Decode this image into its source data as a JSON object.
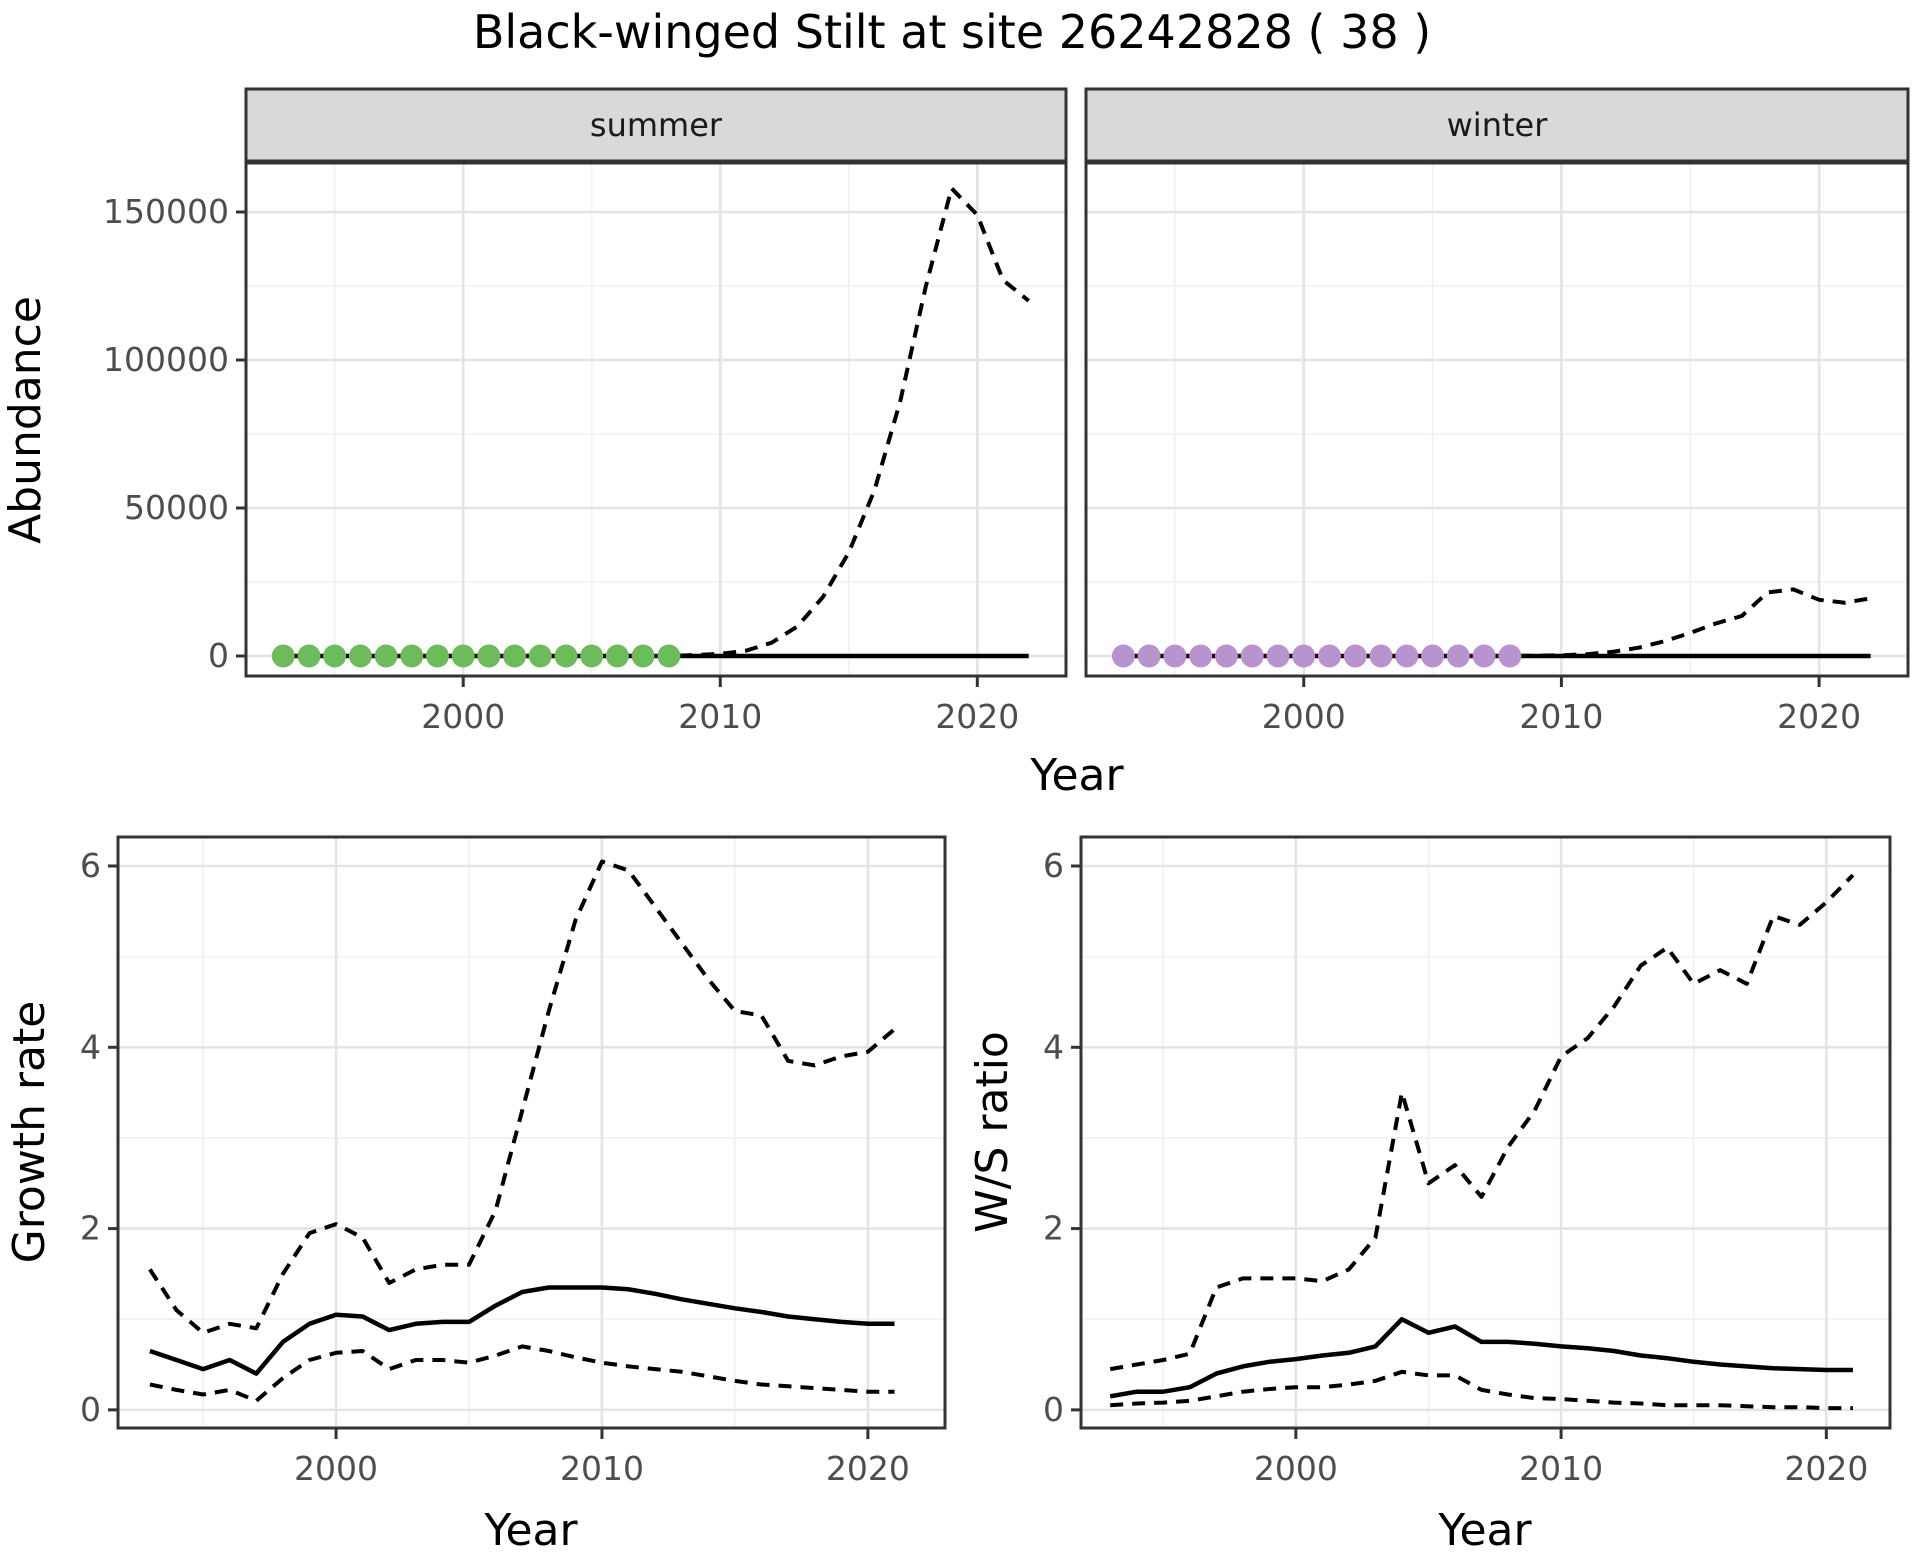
{
  "title": "Black-winged Stilt at site 26242828 ( 38 )",
  "colors": {
    "background": "#ffffff",
    "summer_points": "#6cbc5c",
    "winter_points": "#b993cd",
    "line": "#000000",
    "grid_major": "#e4e4e4",
    "grid_minor": "#f1f1f1",
    "strip_fill": "#d9d9d9",
    "panel_border": "#333333",
    "tick_mark": "#333333",
    "tick_label": "#4d4d4d"
  },
  "chart_data": [
    {
      "id": "abundance",
      "type": "line",
      "xlabel": "Year",
      "ylabel": "Abundance",
      "xlim": [
        1991.55,
        2023.45
      ],
      "ylim": [
        -6760,
        166560
      ],
      "xticks": [
        2000,
        2010,
        2020
      ],
      "xticks_minor": [
        1995,
        2005,
        2015
      ],
      "yticks": [
        0,
        50000,
        100000,
        150000
      ],
      "yticks_minor": [
        25000,
        75000,
        125000
      ],
      "grid": "on",
      "legend": "none",
      "x": [
        1993,
        1994,
        1995,
        1996,
        1997,
        1998,
        1999,
        2000,
        2001,
        2002,
        2003,
        2004,
        2005,
        2006,
        2007,
        2008,
        2009,
        2010,
        2011,
        2012,
        2013,
        2014,
        2015,
        2016,
        2017,
        2018,
        2019,
        2020,
        2021,
        2022
      ],
      "facets": [
        {
          "label": "summer",
          "point_color": "#6cbc5c",
          "dot_years": [
            1993,
            1994,
            1995,
            1996,
            1997,
            1998,
            1999,
            2000,
            2001,
            2002,
            2003,
            2004,
            2005,
            2006,
            2007,
            2008
          ],
          "dot_value": 0,
          "series": [
            {
              "name": "median",
              "style": "solid",
              "values": [
                0,
                0,
                0,
                0,
                0,
                0,
                0,
                0,
                0,
                0,
                0,
                0,
                0,
                0,
                0,
                0,
                0,
                0,
                0,
                0,
                0,
                0,
                0,
                0,
                0,
                0,
                0,
                0,
                0,
                0
              ]
            },
            {
              "name": "upper_ci",
              "style": "dashed",
              "values": [
                0,
                0,
                0,
                0,
                0,
                0,
                0,
                0,
                0,
                0,
                0,
                0,
                0,
                0,
                0,
                0,
                300,
                700,
                1800,
                4500,
                10000,
                20000,
                35000,
                56000,
                86000,
                125000,
                158000,
                149000,
                127000,
                120000
              ]
            },
            {
              "name": "lower_ci",
              "style": "dashed",
              "values": [
                0,
                0,
                0,
                0,
                0,
                0,
                0,
                0,
                0,
                0,
                0,
                0,
                0,
                0,
                0,
                0,
                0,
                0,
                0,
                0,
                0,
                0,
                0,
                0,
                0,
                0,
                0,
                0,
                0,
                0
              ]
            }
          ]
        },
        {
          "label": "winter",
          "point_color": "#b993cd",
          "dot_years": [
            1993,
            1994,
            1995,
            1996,
            1997,
            1998,
            1999,
            2000,
            2001,
            2002,
            2003,
            2004,
            2005,
            2006,
            2007,
            2008
          ],
          "dot_value": 0,
          "series": [
            {
              "name": "median",
              "style": "solid",
              "values": [
                0,
                0,
                0,
                0,
                0,
                0,
                0,
                0,
                0,
                0,
                0,
                0,
                0,
                0,
                0,
                0,
                0,
                0,
                0,
                0,
                0,
                0,
                0,
                0,
                0,
                0,
                0,
                0,
                0,
                0
              ]
            },
            {
              "name": "upper_ci",
              "style": "dashed",
              "values": [
                0,
                0,
                0,
                0,
                0,
                0,
                0,
                0,
                0,
                0,
                0,
                0,
                0,
                0,
                0,
                0,
                100,
                250,
                600,
                1400,
                2800,
                5000,
                7800,
                11000,
                13500,
                21500,
                22500,
                19000,
                18000,
                19500
              ]
            },
            {
              "name": "lower_ci",
              "style": "dashed",
              "values": [
                0,
                0,
                0,
                0,
                0,
                0,
                0,
                0,
                0,
                0,
                0,
                0,
                0,
                0,
                0,
                0,
                0,
                0,
                0,
                0,
                0,
                0,
                0,
                0,
                0,
                0,
                0,
                0,
                0,
                0
              ]
            }
          ]
        }
      ]
    },
    {
      "id": "growth_rate",
      "type": "line",
      "xlabel": "Year",
      "ylabel": "Growth rate",
      "xlim": [
        1991.8,
        2022.9
      ],
      "ylim": [
        -0.2,
        6.32
      ],
      "xticks": [
        2000,
        2010,
        2020
      ],
      "xticks_minor": [
        1995,
        2005,
        2015
      ],
      "yticks": [
        0,
        2,
        4,
        6
      ],
      "yticks_minor": [
        1,
        3,
        5
      ],
      "grid": "on",
      "legend": "none",
      "x": [
        1993,
        1994,
        1995,
        1996,
        1997,
        1998,
        1999,
        2000,
        2001,
        2002,
        2003,
        2004,
        2005,
        2006,
        2007,
        2008,
        2009,
        2010,
        2011,
        2012,
        2013,
        2014,
        2015,
        2016,
        2017,
        2018,
        2019,
        2020,
        2021
      ],
      "series": [
        {
          "name": "median",
          "style": "solid",
          "values": [
            0.65,
            0.55,
            0.45,
            0.55,
            0.4,
            0.75,
            0.95,
            1.05,
            1.03,
            0.88,
            0.95,
            0.97,
            0.97,
            1.15,
            1.3,
            1.35,
            1.35,
            1.35,
            1.33,
            1.28,
            1.22,
            1.17,
            1.12,
            1.08,
            1.03,
            1.0,
            0.97,
            0.95,
            0.95
          ]
        },
        {
          "name": "upper_ci",
          "style": "dashed",
          "values": [
            1.55,
            1.1,
            0.85,
            0.95,
            0.9,
            1.5,
            1.95,
            2.05,
            1.9,
            1.4,
            1.55,
            1.6,
            1.6,
            2.2,
            3.3,
            4.4,
            5.4,
            6.05,
            5.95,
            5.55,
            5.15,
            4.75,
            4.4,
            4.35,
            3.85,
            3.8,
            3.9,
            3.95,
            4.2
          ]
        },
        {
          "name": "lower_ci",
          "style": "dashed",
          "values": [
            0.28,
            0.22,
            0.17,
            0.22,
            0.1,
            0.35,
            0.55,
            0.63,
            0.65,
            0.45,
            0.55,
            0.55,
            0.52,
            0.6,
            0.7,
            0.65,
            0.58,
            0.52,
            0.48,
            0.45,
            0.42,
            0.37,
            0.32,
            0.28,
            0.26,
            0.24,
            0.22,
            0.2,
            0.2
          ]
        }
      ]
    },
    {
      "id": "ws_ratio",
      "type": "line",
      "xlabel": "Year",
      "ylabel": "W/S ratio",
      "xlim": [
        1991.9,
        2022.4
      ],
      "ylim": [
        -0.2,
        6.32
      ],
      "xticks": [
        2000,
        2010,
        2020
      ],
      "xticks_minor": [
        1995,
        2005,
        2015
      ],
      "yticks": [
        0,
        2,
        4,
        6
      ],
      "yticks_minor": [
        1,
        3,
        5
      ],
      "grid": "on",
      "legend": "none",
      "x": [
        1993,
        1994,
        1995,
        1996,
        1997,
        1998,
        1999,
        2000,
        2001,
        2002,
        2003,
        2004,
        2005,
        2006,
        2007,
        2008,
        2009,
        2010,
        2011,
        2012,
        2013,
        2014,
        2015,
        2016,
        2017,
        2018,
        2019,
        2020,
        2021
      ],
      "series": [
        {
          "name": "median",
          "style": "solid",
          "values": [
            0.15,
            0.2,
            0.2,
            0.25,
            0.4,
            0.48,
            0.53,
            0.56,
            0.6,
            0.63,
            0.7,
            1.0,
            0.85,
            0.92,
            0.75,
            0.75,
            0.73,
            0.7,
            0.68,
            0.65,
            0.6,
            0.57,
            0.53,
            0.5,
            0.48,
            0.46,
            0.45,
            0.44,
            0.44
          ]
        },
        {
          "name": "upper_ci",
          "style": "dashed",
          "values": [
            0.45,
            0.5,
            0.55,
            0.62,
            1.35,
            1.45,
            1.45,
            1.45,
            1.42,
            1.55,
            1.9,
            3.5,
            2.5,
            2.7,
            2.35,
            2.9,
            3.3,
            3.9,
            4.1,
            4.45,
            4.9,
            5.1,
            4.7,
            4.85,
            4.7,
            5.45,
            5.35,
            5.6,
            5.9
          ]
        },
        {
          "name": "lower_ci",
          "style": "dashed",
          "values": [
            0.05,
            0.07,
            0.08,
            0.1,
            0.15,
            0.2,
            0.23,
            0.25,
            0.25,
            0.28,
            0.32,
            0.42,
            0.38,
            0.38,
            0.22,
            0.17,
            0.13,
            0.12,
            0.1,
            0.08,
            0.07,
            0.05,
            0.05,
            0.05,
            0.04,
            0.03,
            0.03,
            0.02,
            0.02
          ]
        }
      ]
    }
  ]
}
